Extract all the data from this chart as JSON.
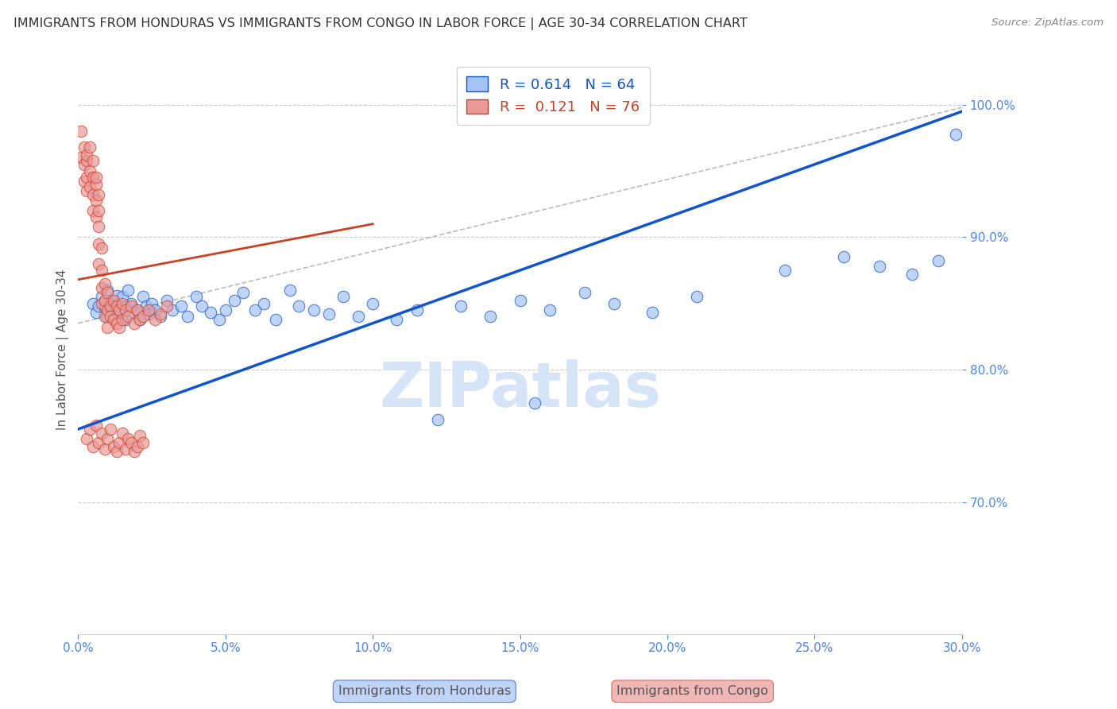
{
  "title": "IMMIGRANTS FROM HONDURAS VS IMMIGRANTS FROM CONGO IN LABOR FORCE | AGE 30-34 CORRELATION CHART",
  "source": "Source: ZipAtlas.com",
  "ylabel": "In Labor Force | Age 30-34",
  "xlim": [
    0.0,
    0.3
  ],
  "ylim": [
    0.6,
    1.03
  ],
  "xticks": [
    0.0,
    0.05,
    0.1,
    0.15,
    0.2,
    0.25,
    0.3
  ],
  "xticklabels": [
    "0.0%",
    "5.0%",
    "10.0%",
    "15.0%",
    "20.0%",
    "25.0%",
    "30.0%"
  ],
  "yticks": [
    0.7,
    0.8,
    0.9,
    1.0
  ],
  "yticklabels": [
    "70.0%",
    "80.0%",
    "90.0%",
    "100.0%"
  ],
  "legend_r_honduras": "R = 0.614",
  "legend_n_honduras": "N = 64",
  "legend_r_congo": "R =  0.121",
  "legend_n_congo": "N = 76",
  "honduras_color": "#a4c2f4",
  "congo_color": "#ea9999",
  "trend_honduras_color": "#1155cc",
  "trend_congo_color": "#cc4125",
  "ref_line_color": "#aaaaaa",
  "grid_color": "#cccccc",
  "axis_color": "#4a86e8",
  "title_color": "#333333",
  "watermark_color": "#d6e4f7",
  "background_color": "#ffffff",
  "honduras_x": [
    0.005,
    0.006,
    0.007,
    0.008,
    0.009,
    0.01,
    0.01,
    0.011,
    0.012,
    0.013,
    0.014,
    0.015,
    0.016,
    0.016,
    0.017,
    0.018,
    0.019,
    0.02,
    0.021,
    0.022,
    0.023,
    0.024,
    0.025,
    0.026,
    0.028,
    0.03,
    0.032,
    0.035,
    0.037,
    0.04,
    0.042,
    0.045,
    0.048,
    0.05,
    0.053,
    0.056,
    0.06,
    0.063,
    0.067,
    0.072,
    0.075,
    0.08,
    0.085,
    0.09,
    0.095,
    0.1,
    0.108,
    0.115,
    0.122,
    0.13,
    0.14,
    0.15,
    0.16,
    0.172,
    0.182,
    0.195,
    0.155,
    0.21,
    0.24,
    0.26,
    0.272,
    0.283,
    0.292,
    0.298
  ],
  "honduras_y": [
    0.85,
    0.843,
    0.848,
    0.855,
    0.847,
    0.84,
    0.86,
    0.852,
    0.845,
    0.856,
    0.843,
    0.855,
    0.848,
    0.838,
    0.86,
    0.85,
    0.843,
    0.845,
    0.838,
    0.855,
    0.848,
    0.842,
    0.85,
    0.845,
    0.84,
    0.852,
    0.845,
    0.848,
    0.84,
    0.855,
    0.848,
    0.843,
    0.838,
    0.845,
    0.852,
    0.858,
    0.845,
    0.85,
    0.838,
    0.86,
    0.848,
    0.845,
    0.842,
    0.855,
    0.84,
    0.85,
    0.838,
    0.845,
    0.762,
    0.848,
    0.84,
    0.852,
    0.845,
    0.858,
    0.85,
    0.843,
    0.775,
    0.855,
    0.875,
    0.885,
    0.878,
    0.872,
    0.882,
    0.978
  ],
  "congo_x": [
    0.001,
    0.001,
    0.002,
    0.002,
    0.002,
    0.003,
    0.003,
    0.003,
    0.003,
    0.004,
    0.004,
    0.004,
    0.005,
    0.005,
    0.005,
    0.005,
    0.006,
    0.006,
    0.006,
    0.006,
    0.007,
    0.007,
    0.007,
    0.007,
    0.007,
    0.008,
    0.008,
    0.008,
    0.008,
    0.009,
    0.009,
    0.009,
    0.01,
    0.01,
    0.01,
    0.011,
    0.011,
    0.012,
    0.012,
    0.013,
    0.013,
    0.014,
    0.014,
    0.015,
    0.015,
    0.016,
    0.017,
    0.018,
    0.019,
    0.02,
    0.021,
    0.022,
    0.024,
    0.026,
    0.028,
    0.03,
    0.003,
    0.004,
    0.005,
    0.006,
    0.007,
    0.008,
    0.009,
    0.01,
    0.011,
    0.012,
    0.013,
    0.014,
    0.015,
    0.016,
    0.017,
    0.018,
    0.019,
    0.02,
    0.021,
    0.022
  ],
  "congo_y": [
    0.98,
    0.96,
    0.955,
    0.968,
    0.942,
    0.958,
    0.945,
    0.935,
    0.962,
    0.95,
    0.938,
    0.968,
    0.945,
    0.932,
    0.92,
    0.958,
    0.94,
    0.928,
    0.915,
    0.945,
    0.932,
    0.92,
    0.908,
    0.895,
    0.88,
    0.892,
    0.875,
    0.862,
    0.85,
    0.865,
    0.852,
    0.84,
    0.858,
    0.845,
    0.832,
    0.848,
    0.84,
    0.852,
    0.838,
    0.848,
    0.835,
    0.845,
    0.832,
    0.85,
    0.838,
    0.845,
    0.84,
    0.848,
    0.835,
    0.845,
    0.838,
    0.84,
    0.845,
    0.838,
    0.842,
    0.848,
    0.748,
    0.755,
    0.742,
    0.758,
    0.745,
    0.752,
    0.74,
    0.748,
    0.755,
    0.742,
    0.738,
    0.745,
    0.752,
    0.74,
    0.748,
    0.745,
    0.738,
    0.742,
    0.75,
    0.745
  ],
  "trend_honduras_x0": 0.0,
  "trend_honduras_x1": 0.3,
  "trend_honduras_y0": 0.755,
  "trend_honduras_y1": 0.995,
  "trend_congo_x0": 0.0,
  "trend_congo_x1": 0.1,
  "trend_congo_y0": 0.868,
  "trend_congo_y1": 0.91,
  "ref_line_x0": 0.0,
  "ref_line_x1": 0.3,
  "ref_line_y0": 0.835,
  "ref_line_y1": 0.998
}
